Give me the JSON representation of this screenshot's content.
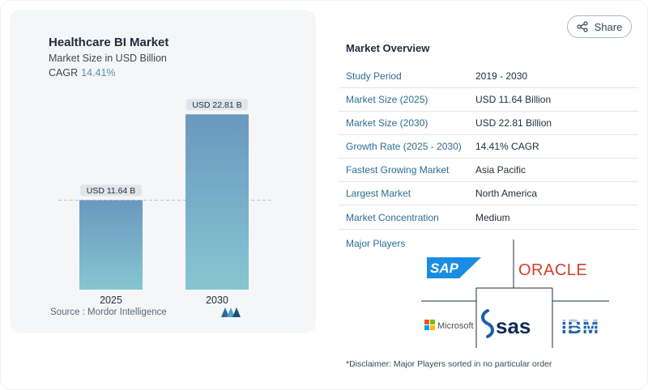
{
  "chart": {
    "title": "Healthcare BI Market",
    "subtitle": "Market Size in USD Billion",
    "cagr_label": "CAGR",
    "cagr_value": "14.41%",
    "source": "Source :  Mordor Intelligence",
    "logo_alt": "Mordor Intelligence logo"
  },
  "chart_data": {
    "type": "bar",
    "categories": [
      "2025",
      "2030"
    ],
    "values": [
      11.64,
      22.81
    ],
    "data_labels": [
      "USD 11.64 B",
      "USD 22.81 B"
    ],
    "title": "Healthcare BI Market",
    "subtitle": "Market Size in USD Billion",
    "ylim": [
      0,
      24
    ],
    "reference_line_value": 11.64,
    "colors": {
      "bar_top": "#6a98bf",
      "bar_bottom": "#86c6d1",
      "label_bg": "#dfe5ea"
    }
  },
  "share": {
    "label": "Share",
    "icon": "share-icon"
  },
  "overview": {
    "title": "Market Overview",
    "rows": [
      {
        "label": "Study Period",
        "value": "2019 - 2030"
      },
      {
        "label": "Market Size (2025)",
        "value": "USD 11.64 Billion"
      },
      {
        "label": "Market Size (2030)",
        "value": "USD 22.81 Billion"
      },
      {
        "label": "Growth Rate (2025 - 2030)",
        "value": "14.41% CAGR"
      },
      {
        "label": "Fastest Growing Market",
        "value": "Asia Pacific"
      },
      {
        "label": "Largest Market",
        "value": "North America"
      },
      {
        "label": "Market Concentration",
        "value": "Medium"
      }
    ]
  },
  "players": {
    "title": "Major Players",
    "logos": [
      {
        "name": "SAP",
        "text": "SAP",
        "color": "#1b8ce3"
      },
      {
        "name": "Oracle",
        "text": "ORACLE",
        "color": "#d0402e"
      },
      {
        "name": "Microsoft",
        "text": "Microsoft",
        "color": "#505050"
      },
      {
        "name": "SAS",
        "text": "sas",
        "color": "#0b2b5a"
      },
      {
        "name": "IBM",
        "text": "IBM",
        "color": "#1f5fa8"
      }
    ]
  },
  "disclaimer": "*Disclaimer: Major Players sorted in no particular order"
}
